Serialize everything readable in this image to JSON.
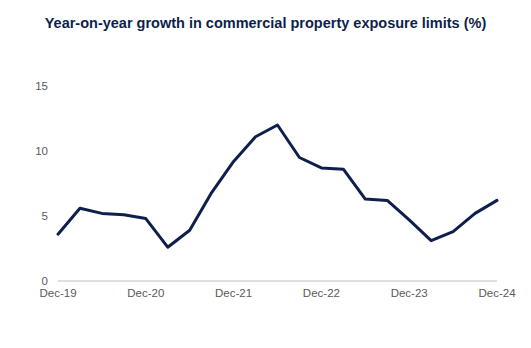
{
  "chart_data": {
    "type": "line",
    "title": "Year-on-year growth in commercial property exposure limits (%)",
    "categories": [
      "Dec-19",
      null,
      null,
      null,
      "Dec-20",
      null,
      null,
      null,
      "Dec-21",
      null,
      null,
      null,
      "Dec-22",
      null,
      null,
      null,
      "Dec-23",
      null,
      null,
      null,
      "Dec-24"
    ],
    "values": [
      3.6,
      5.6,
      5.2,
      5.1,
      4.8,
      2.6,
      3.9,
      6.8,
      9.2,
      11.1,
      12.0,
      9.5,
      8.7,
      8.6,
      6.3,
      6.2,
      4.7,
      3.1,
      3.8,
      5.2,
      6.2
    ],
    "color": "#0e1f4d",
    "ylim": [
      0,
      15
    ],
    "yticks": [
      0,
      5,
      10,
      15
    ],
    "grid": false
  }
}
